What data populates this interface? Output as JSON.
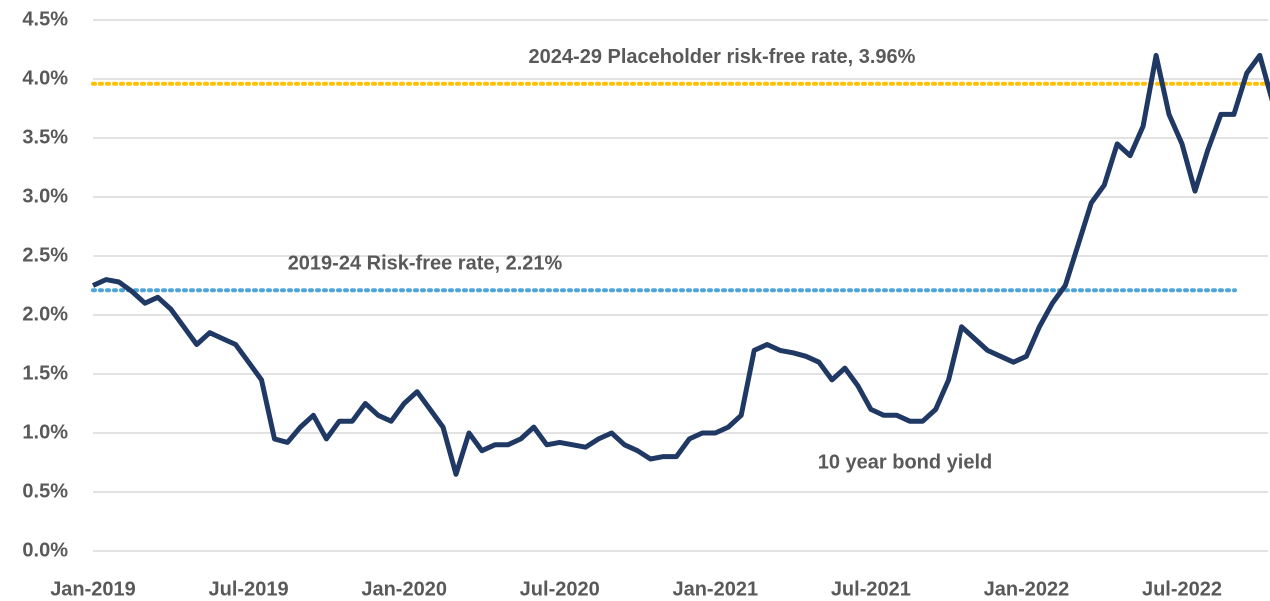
{
  "chart_data": {
    "type": "line",
    "categories": [
      "Jan-2019",
      null,
      null,
      null,
      null,
      null,
      null,
      null,
      null,
      null,
      null,
      null,
      "Jul-2019",
      null,
      null,
      null,
      null,
      null,
      null,
      null,
      null,
      null,
      null,
      null,
      "Jan-2020",
      null,
      null,
      null,
      null,
      null,
      null,
      null,
      null,
      null,
      null,
      null,
      "Jul-2020",
      null,
      null,
      null,
      null,
      null,
      null,
      null,
      null,
      null,
      null,
      null,
      "Jan-2021",
      null,
      null,
      null,
      null,
      null,
      null,
      null,
      null,
      null,
      null,
      null,
      "Jul-2021",
      null,
      null,
      null,
      null,
      null,
      null,
      null,
      null,
      null,
      null,
      null,
      "Jan-2022",
      null,
      null,
      null,
      null,
      null,
      null,
      null,
      null,
      null,
      null,
      null,
      "Jul-2022",
      null,
      null,
      null,
      null,
      null,
      null,
      null
    ],
    "series": [
      {
        "name": "10 year bond yield",
        "color": "#1f3864",
        "values": [
          2.25,
          2.3,
          2.28,
          2.2,
          2.1,
          2.15,
          2.05,
          1.9,
          1.75,
          1.85,
          1.8,
          1.75,
          1.6,
          1.45,
          0.95,
          0.92,
          1.05,
          1.15,
          0.95,
          1.1,
          1.1,
          1.25,
          1.15,
          1.1,
          1.25,
          1.35,
          1.2,
          1.05,
          0.65,
          1.0,
          0.85,
          0.9,
          0.9,
          0.95,
          1.05,
          0.9,
          0.92,
          0.9,
          0.88,
          0.95,
          1.0,
          0.9,
          0.85,
          0.78,
          0.8,
          0.8,
          0.95,
          1.0,
          1.0,
          1.05,
          1.15,
          1.7,
          1.75,
          1.7,
          1.68,
          1.65,
          1.6,
          1.45,
          1.55,
          1.4,
          1.2,
          1.15,
          1.15,
          1.1,
          1.1,
          1.2,
          1.45,
          1.9,
          1.8,
          1.7,
          1.65,
          1.6,
          1.65,
          1.9,
          2.1,
          2.25,
          2.6,
          2.95,
          3.1,
          3.45,
          3.35,
          3.6,
          4.2,
          3.7,
          3.45,
          3.05,
          3.4,
          3.7,
          3.7,
          4.05,
          4.2,
          3.8
        ]
      }
    ],
    "reference_lines": [
      {
        "label": "2024-29 Placeholder risk-free rate, 3.96%",
        "value": 3.96,
        "color": "#ffc000"
      },
      {
        "label": "2019-24 Risk-free rate, 2.21%",
        "value": 2.21,
        "color": "#4ea5d9"
      }
    ],
    "ylim": [
      0,
      4.5
    ],
    "yticks": [
      {
        "value": 0,
        "label": "0.0%"
      },
      {
        "value": 0.5,
        "label": "0.5%"
      },
      {
        "value": 1,
        "label": "1.0%"
      },
      {
        "value": 1.5,
        "label": "1.5%"
      },
      {
        "value": 2,
        "label": "2.0%"
      },
      {
        "value": 2.5,
        "label": "2.5%"
      },
      {
        "value": 3,
        "label": "3.0%"
      },
      {
        "value": 3.5,
        "label": "3.5%"
      },
      {
        "value": 4,
        "label": "4.0%"
      },
      {
        "value": 4.5,
        "label": "4.5%"
      }
    ],
    "grid": true
  }
}
